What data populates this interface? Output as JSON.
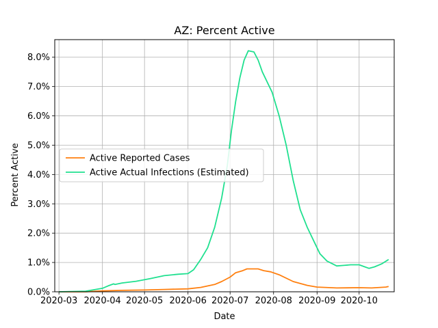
{
  "chart_data": {
    "type": "line",
    "title": "AZ: Percent Active",
    "xlabel": "Date",
    "ylabel": "Percent Active",
    "x_type": "date",
    "xlim": [
      "2020-02-27",
      "2020-10-26"
    ],
    "ylim": [
      0.0,
      8.6
    ],
    "x_ticks": [
      "2020-03-01",
      "2020-04-01",
      "2020-05-01",
      "2020-06-01",
      "2020-07-01",
      "2020-08-01",
      "2020-09-01",
      "2020-10-01"
    ],
    "x_tick_labels": [
      "2020-03",
      "2020-04",
      "2020-05",
      "2020-06",
      "2020-07",
      "2020-08",
      "2020-09",
      "2020-10"
    ],
    "y_ticks": [
      0,
      1,
      2,
      3,
      4,
      5,
      6,
      7,
      8
    ],
    "y_tick_labels": [
      "0.0%",
      "1.0%",
      "2.0%",
      "3.0%",
      "4.0%",
      "5.0%",
      "6.0%",
      "7.0%",
      "8.0%"
    ],
    "grid": true,
    "legend_position": "center-left",
    "series": [
      {
        "name": "Active Reported Cases",
        "color": "#ff7f0e",
        "points": [
          [
            "2020-03-01",
            0.0
          ],
          [
            "2020-03-20",
            0.0
          ],
          [
            "2020-04-01",
            0.03
          ],
          [
            "2020-04-15",
            0.05
          ],
          [
            "2020-05-01",
            0.06
          ],
          [
            "2020-05-15",
            0.08
          ],
          [
            "2020-06-01",
            0.1
          ],
          [
            "2020-06-10",
            0.15
          ],
          [
            "2020-06-20",
            0.25
          ],
          [
            "2020-06-25",
            0.35
          ],
          [
            "2020-07-01",
            0.5
          ],
          [
            "2020-07-05",
            0.65
          ],
          [
            "2020-07-10",
            0.72
          ],
          [
            "2020-07-13",
            0.78
          ],
          [
            "2020-07-18",
            0.78
          ],
          [
            "2020-07-21",
            0.78
          ],
          [
            "2020-07-25",
            0.72
          ],
          [
            "2020-07-30",
            0.68
          ],
          [
            "2020-08-05",
            0.58
          ],
          [
            "2020-08-15",
            0.35
          ],
          [
            "2020-08-25",
            0.22
          ],
          [
            "2020-09-01",
            0.16
          ],
          [
            "2020-09-15",
            0.13
          ],
          [
            "2020-10-01",
            0.14
          ],
          [
            "2020-10-10",
            0.13
          ],
          [
            "2020-10-20",
            0.16
          ],
          [
            "2020-10-22",
            0.18
          ]
        ]
      },
      {
        "name": "Active Actual Infections (Estimated)",
        "color": "#1fe08f",
        "points": [
          [
            "2020-03-01",
            0.0
          ],
          [
            "2020-03-20",
            0.02
          ],
          [
            "2020-03-25",
            0.06
          ],
          [
            "2020-04-01",
            0.12
          ],
          [
            "2020-04-05",
            0.2
          ],
          [
            "2020-04-09",
            0.27
          ],
          [
            "2020-04-10",
            0.25
          ],
          [
            "2020-04-15",
            0.3
          ],
          [
            "2020-04-25",
            0.36
          ],
          [
            "2020-05-05",
            0.45
          ],
          [
            "2020-05-15",
            0.55
          ],
          [
            "2020-05-25",
            0.6
          ],
          [
            "2020-06-01",
            0.62
          ],
          [
            "2020-06-05",
            0.75
          ],
          [
            "2020-06-10",
            1.1
          ],
          [
            "2020-06-15",
            1.5
          ],
          [
            "2020-06-20",
            2.2
          ],
          [
            "2020-06-25",
            3.2
          ],
          [
            "2020-06-29",
            4.3
          ],
          [
            "2020-07-02",
            5.5
          ],
          [
            "2020-07-05",
            6.5
          ],
          [
            "2020-07-08",
            7.3
          ],
          [
            "2020-07-11",
            7.9
          ],
          [
            "2020-07-14",
            8.22
          ],
          [
            "2020-07-18",
            8.18
          ],
          [
            "2020-07-21",
            7.9
          ],
          [
            "2020-07-24",
            7.5
          ],
          [
            "2020-07-31",
            6.8
          ],
          [
            "2020-08-05",
            6.0
          ],
          [
            "2020-08-10",
            5.0
          ],
          [
            "2020-08-15",
            3.8
          ],
          [
            "2020-08-20",
            2.8
          ],
          [
            "2020-08-25",
            2.2
          ],
          [
            "2020-08-31",
            1.6
          ],
          [
            "2020-09-03",
            1.3
          ],
          [
            "2020-09-08",
            1.05
          ],
          [
            "2020-09-15",
            0.88
          ],
          [
            "2020-09-20",
            0.9
          ],
          [
            "2020-09-25",
            0.92
          ],
          [
            "2020-10-01",
            0.92
          ],
          [
            "2020-10-05",
            0.85
          ],
          [
            "2020-10-08",
            0.8
          ],
          [
            "2020-10-12",
            0.85
          ],
          [
            "2020-10-17",
            0.95
          ],
          [
            "2020-10-22",
            1.1
          ]
        ]
      }
    ]
  }
}
